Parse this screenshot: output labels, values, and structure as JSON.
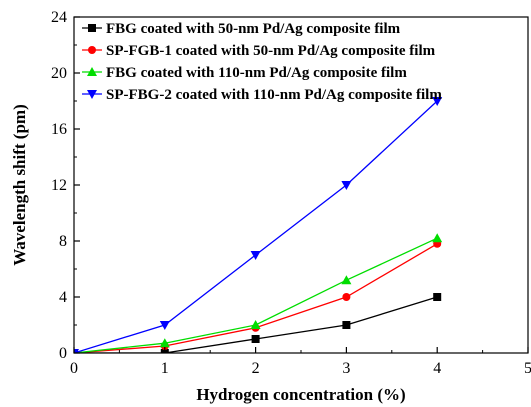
{
  "chart_data": {
    "type": "line",
    "xlabel": "Hydrogen concentration (%)",
    "ylabel": "Wavelength shift (pm)",
    "xlim": [
      0,
      5
    ],
    "ylim": [
      0,
      24
    ],
    "x_ticks": [
      0,
      1,
      2,
      3,
      4,
      5
    ],
    "y_ticks": [
      0,
      4,
      8,
      12,
      16,
      20,
      24
    ],
    "grid": false,
    "legend_position": "top-left",
    "series": [
      {
        "name": "FBG coated with 50-nm Pd/Ag composite film",
        "color": "#000000",
        "marker": "square",
        "x": [
          0,
          1,
          2,
          3,
          4
        ],
        "y": [
          0,
          0,
          1.0,
          2.0,
          4.0
        ]
      },
      {
        "name": "SP-FGB-1 coated with 50-nm Pd/Ag composite film",
        "color": "#ff0000",
        "marker": "circle",
        "x": [
          0,
          1,
          2,
          3,
          4
        ],
        "y": [
          0,
          0.5,
          1.8,
          4.0,
          7.8
        ]
      },
      {
        "name": "FBG coated with 110-nm Pd/Ag composite film",
        "color": "#00dd00",
        "marker": "triangle-up",
        "x": [
          0,
          1,
          2,
          3,
          4
        ],
        "y": [
          0,
          0.7,
          2.0,
          5.2,
          8.2
        ]
      },
      {
        "name": "SP-FBG-2 coated with 110-nm Pd/Ag composite film",
        "color": "#0000ff",
        "marker": "triangle-down",
        "x": [
          0,
          1,
          2,
          3,
          4
        ],
        "y": [
          0,
          2.0,
          7.0,
          12.0,
          18.0
        ]
      }
    ]
  }
}
